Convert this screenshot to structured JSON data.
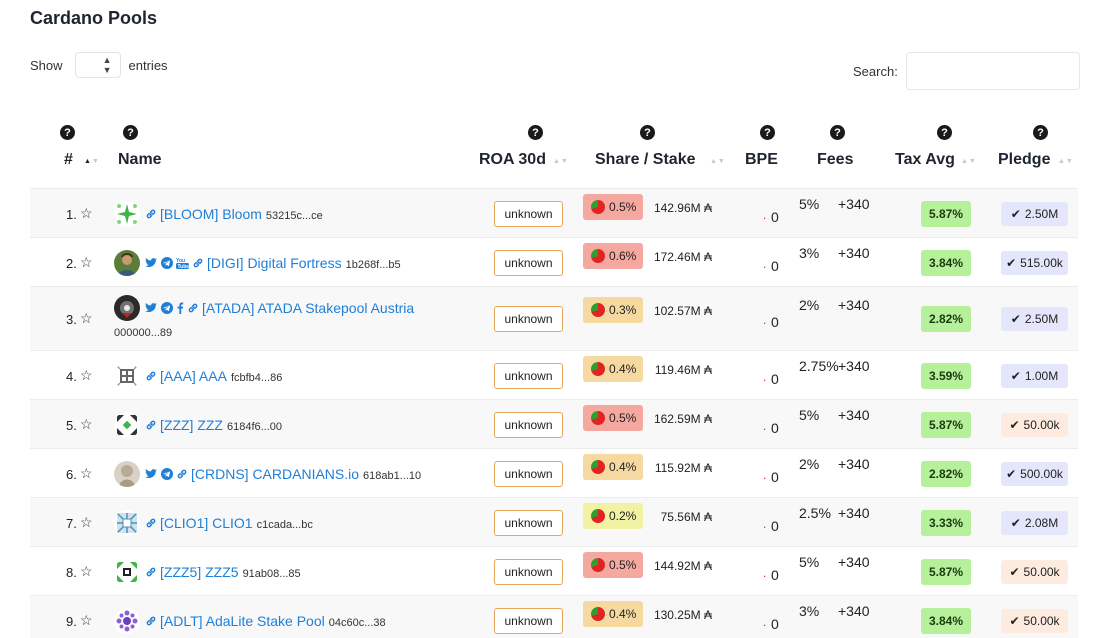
{
  "title": "Cardano Pools",
  "show": {
    "prefix": "Show",
    "suffix": "entries",
    "select_value": ""
  },
  "search": {
    "label": "Search:",
    "value": ""
  },
  "columns": {
    "rank": "#",
    "name": "Name",
    "roa": "ROA 30d",
    "share": "Share / Stake",
    "bpe": "BPE",
    "fees": "Fees",
    "tax": "Tax Avg",
    "pledge": "Pledge"
  },
  "rows": [
    {
      "rank": "1.",
      "ticker_name": "[BLOOM] Bloom",
      "id": "53215c...ce",
      "roa": "unknown",
      "share": "0.5%",
      "share_level": "high",
      "stake": "142.96M ₳",
      "bpe": "0",
      "fee_pct": "5%",
      "fee_fixed": "+340",
      "tax": "5.87%",
      "pledge": "2.50M",
      "pledge_met": true,
      "socials": [
        "link-icon"
      ],
      "logo": "green-star"
    },
    {
      "rank": "2.",
      "ticker_name": "[DIGI] Digital Fortress",
      "id": "1b268f...b5",
      "roa": "unknown",
      "share": "0.6%",
      "share_level": "high",
      "stake": "172.46M ₳",
      "bpe": "0",
      "fee_pct": "3%",
      "fee_fixed": "+340",
      "tax": "3.84%",
      "pledge": "515.00k",
      "pledge_met": true,
      "socials": [
        "twitter-icon",
        "telegram-icon",
        "youtube-icon",
        "link-icon"
      ],
      "logo": "photo"
    },
    {
      "rank": "3.",
      "ticker_name": "[ATADA] ATADA Stakepool Austria",
      "id": "000000...89",
      "roa": "unknown",
      "share": "0.3%",
      "share_level": "mid",
      "stake": "102.57M ₳",
      "bpe": "0",
      "fee_pct": "2%",
      "fee_fixed": "+340",
      "tax": "2.82%",
      "pledge": "2.50M",
      "pledge_met": true,
      "socials": [
        "twitter-icon",
        "telegram-icon",
        "facebook-icon",
        "link-icon"
      ],
      "logo": "dark"
    },
    {
      "rank": "4.",
      "ticker_name": "[AAA] AAA",
      "id": "fcbfb4...86",
      "roa": "unknown",
      "share": "0.4%",
      "share_level": "mid",
      "stake": "119.46M ₳",
      "bpe": "0",
      "fee_pct": "2.75%",
      "fee_fixed": "+340",
      "tax": "3.59%",
      "pledge": "1.00M",
      "pledge_met": true,
      "socials": [
        "link-icon"
      ],
      "logo": "grid"
    },
    {
      "rank": "5.",
      "ticker_name": "[ZZZ] ZZZ",
      "id": "6184f6...00",
      "roa": "unknown",
      "share": "0.5%",
      "share_level": "high",
      "stake": "162.59M ₳",
      "bpe": "0",
      "fee_pct": "5%",
      "fee_fixed": "+340",
      "tax": "5.87%",
      "pledge": "50.00k",
      "pledge_met": false,
      "socials": [
        "link-icon"
      ],
      "logo": "pattern"
    },
    {
      "rank": "6.",
      "ticker_name": "[CRDNS] CARDANIANS.io",
      "id": "618ab1...10",
      "roa": "unknown",
      "share": "0.4%",
      "share_level": "mid",
      "stake": "115.92M ₳",
      "bpe": "0",
      "fee_pct": "2%",
      "fee_fixed": "+340",
      "tax": "2.82%",
      "pledge": "500.00k",
      "pledge_met": true,
      "socials": [
        "twitter-icon",
        "telegram-icon",
        "link-icon"
      ],
      "logo": "statue"
    },
    {
      "rank": "7.",
      "ticker_name": "[CLIO1] CLIO1",
      "id": "c1cada...bc",
      "roa": "unknown",
      "share": "0.2%",
      "share_level": "low",
      "stake": "75.56M ₳",
      "bpe": "0",
      "fee_pct": "2.5%",
      "fee_fixed": "+340",
      "tax": "3.33%",
      "pledge": "2.08M",
      "pledge_met": true,
      "socials": [
        "link-icon"
      ],
      "logo": "blue-grid"
    },
    {
      "rank": "8.",
      "ticker_name": "[ZZZ5] ZZZ5",
      "id": "91ab08...85",
      "roa": "unknown",
      "share": "0.5%",
      "share_level": "high",
      "stake": "144.92M ₳",
      "bpe": "0",
      "fee_pct": "5%",
      "fee_fixed": "+340",
      "tax": "5.87%",
      "pledge": "50.00k",
      "pledge_met": false,
      "socials": [
        "link-icon"
      ],
      "logo": "green-pattern"
    },
    {
      "rank": "9.",
      "ticker_name": "[ADLT] AdaLite Stake Pool",
      "id": "04c60c...38",
      "roa": "unknown",
      "share": "0.4%",
      "share_level": "mid",
      "stake": "130.25M ₳",
      "bpe": "0",
      "fee_pct": "3%",
      "fee_fixed": "+340",
      "tax": "3.84%",
      "pledge": "50.00k",
      "pledge_met": false,
      "socials": [
        "link-icon"
      ],
      "logo": "purple-dots"
    }
  ],
  "colors": {
    "link": "#1f7fd6",
    "share_high": "#f4a8a0",
    "share_mid": "#f6d9a0",
    "share_low": "#f1f3a2",
    "tax": "#b6f09a",
    "pledge_met": "#e4e7fb",
    "pledge_low": "#fdebdf",
    "roa_border": "#e8a55c"
  }
}
